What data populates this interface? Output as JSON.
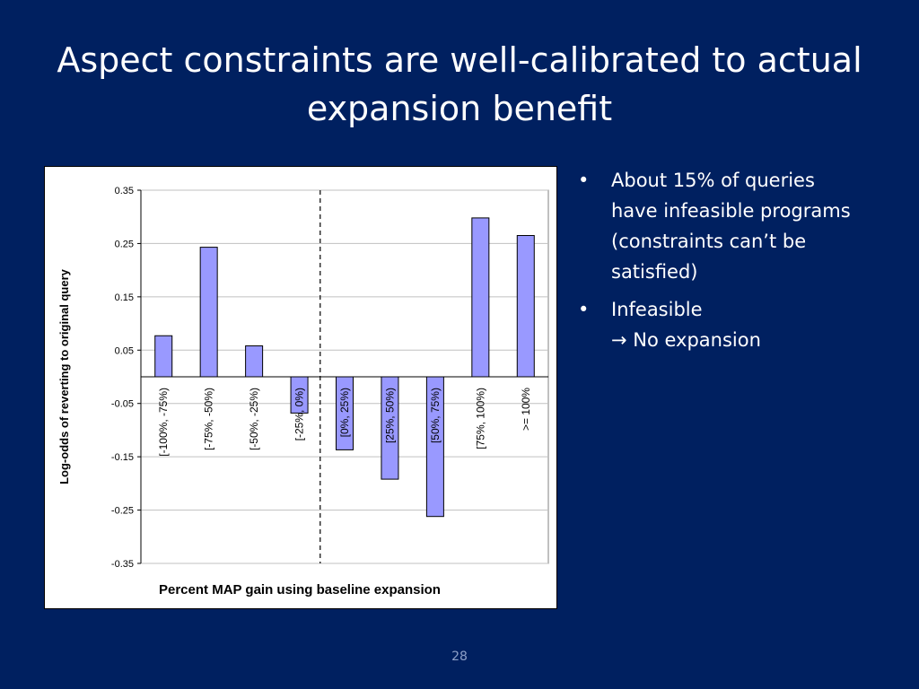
{
  "slide": {
    "title": "Aspect constraints are well-calibrated to actual expansion benefit",
    "number": "28"
  },
  "bullets": [
    {
      "lines": [
        "About 15% of queries",
        "have infeasible programs",
        "(constraints can’t be",
        "satisfied)"
      ]
    },
    {
      "lines": [
        "Infeasible",
        "→ No expansion"
      ]
    }
  ],
  "colors": {
    "background": "#002060",
    "bar_fill": "#9999FF",
    "bar_stroke": "#000000",
    "gridline": "#C0C0C0"
  },
  "chart_data": {
    "type": "bar",
    "title": "",
    "xlabel": "Percent MAP gain using baseline expansion",
    "ylabel": "Log-odds of reverting to original query",
    "categories": [
      "[-100%, -75%)",
      "[-75%, -50%)",
      "[-50%, -25%)",
      "[-25%, 0%)",
      "[0%, 25%)",
      "[25%, 50%)",
      "[50%, 75%)",
      "[75%, 100%)",
      ">= 100%"
    ],
    "values": [
      0.077,
      0.243,
      0.058,
      -0.068,
      -0.137,
      -0.192,
      -0.262,
      0.298,
      0.265
    ],
    "ylim": [
      -0.35,
      0.35
    ],
    "yticks": [
      "0.35",
      "0.25",
      "0.15",
      "0.05",
      "-0.05",
      "-0.15",
      "-0.25",
      "-0.35"
    ],
    "grid": true,
    "reference_line": {
      "style": "dashed",
      "between_categories": [
        "[-25%, 0%)",
        "[0%, 25%)"
      ]
    }
  }
}
